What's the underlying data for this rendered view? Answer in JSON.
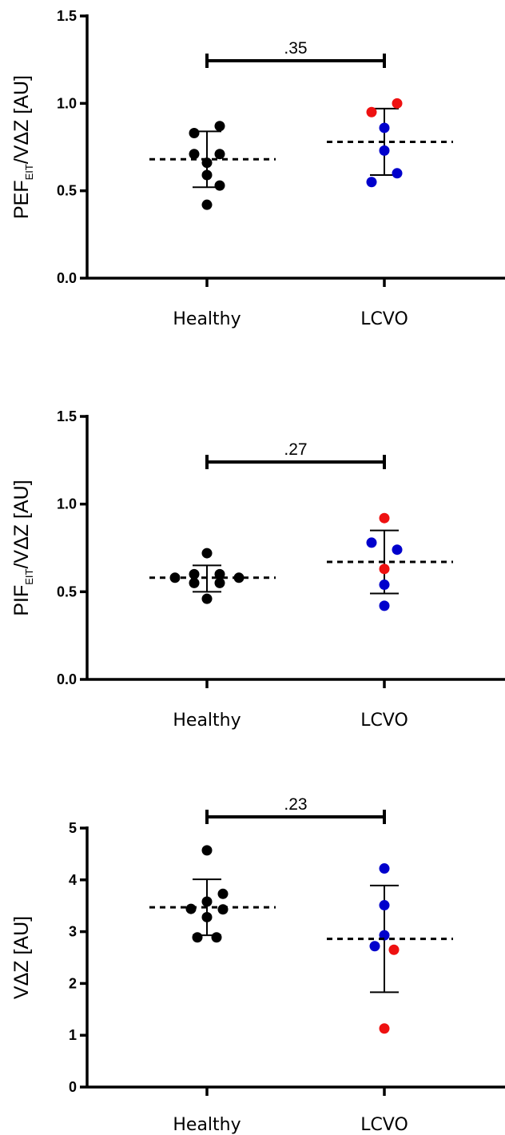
{
  "colors": {
    "healthy": "#000000",
    "lcvo_blue": "#0000cc",
    "lcvo_red": "#ee1111"
  },
  "chart_data": [
    {
      "type": "scatter",
      "categories": [
        "Healthy",
        "LCVO"
      ],
      "ylabel_main": "PEF",
      "ylabel_sub": "EIT",
      "ylabel_rest": "/VΔZ  [AU]",
      "ylim": [
        0,
        1.5
      ],
      "yticks": [
        "0.0",
        "0.5",
        "1.0",
        "1.5"
      ],
      "grid": false,
      "p_value": ".35",
      "groups": [
        {
          "name": "Healthy",
          "mean": 0.68,
          "sd_low": 0.52,
          "sd_high": 0.84,
          "points": [
            {
              "dx": -0.2,
              "y": 0.83,
              "c": "healthy"
            },
            {
              "dx": 0.2,
              "y": 0.87,
              "c": "healthy"
            },
            {
              "dx": -0.2,
              "y": 0.71,
              "c": "healthy"
            },
            {
              "dx": 0.2,
              "y": 0.71,
              "c": "healthy"
            },
            {
              "dx": 0.0,
              "y": 0.66,
              "c": "healthy"
            },
            {
              "dx": 0.0,
              "y": 0.59,
              "c": "healthy"
            },
            {
              "dx": 0.2,
              "y": 0.53,
              "c": "healthy"
            },
            {
              "dx": 0.0,
              "y": 0.42,
              "c": "healthy"
            }
          ]
        },
        {
          "name": "LCVO",
          "mean": 0.78,
          "sd_low": 0.59,
          "sd_high": 0.97,
          "points": [
            {
              "dx": 0.2,
              "y": 1.0,
              "c": "lcvo_red"
            },
            {
              "dx": -0.2,
              "y": 0.95,
              "c": "lcvo_red"
            },
            {
              "dx": 0.0,
              "y": 0.86,
              "c": "lcvo_blue"
            },
            {
              "dx": 0.0,
              "y": 0.73,
              "c": "lcvo_blue"
            },
            {
              "dx": 0.2,
              "y": 0.6,
              "c": "lcvo_blue"
            },
            {
              "dx": -0.2,
              "y": 0.55,
              "c": "lcvo_blue"
            }
          ]
        }
      ]
    },
    {
      "type": "scatter",
      "categories": [
        "Healthy",
        "LCVO"
      ],
      "ylabel_main": "PIF",
      "ylabel_sub": "EIT",
      "ylabel_rest": "/VΔZ  [AU]",
      "ylim": [
        0,
        1.5
      ],
      "yticks": [
        "0.0",
        "0.5",
        "1.0",
        "1.5"
      ],
      "grid": false,
      "p_value": ".27",
      "groups": [
        {
          "name": "Healthy",
          "mean": 0.58,
          "sd_low": 0.5,
          "sd_high": 0.65,
          "points": [
            {
              "dx": 0.0,
              "y": 0.72,
              "c": "healthy"
            },
            {
              "dx": -0.2,
              "y": 0.6,
              "c": "healthy"
            },
            {
              "dx": 0.2,
              "y": 0.6,
              "c": "healthy"
            },
            {
              "dx": -0.5,
              "y": 0.58,
              "c": "healthy"
            },
            {
              "dx": 0.5,
              "y": 0.58,
              "c": "healthy"
            },
            {
              "dx": -0.2,
              "y": 0.55,
              "c": "healthy"
            },
            {
              "dx": 0.2,
              "y": 0.55,
              "c": "healthy"
            },
            {
              "dx": 0.0,
              "y": 0.46,
              "c": "healthy"
            }
          ]
        },
        {
          "name": "LCVO",
          "mean": 0.67,
          "sd_low": 0.49,
          "sd_high": 0.85,
          "points": [
            {
              "dx": 0.0,
              "y": 0.92,
              "c": "lcvo_red"
            },
            {
              "dx": -0.2,
              "y": 0.78,
              "c": "lcvo_blue"
            },
            {
              "dx": 0.2,
              "y": 0.74,
              "c": "lcvo_blue"
            },
            {
              "dx": 0.0,
              "y": 0.63,
              "c": "lcvo_red"
            },
            {
              "dx": 0.0,
              "y": 0.54,
              "c": "lcvo_blue"
            },
            {
              "dx": 0.0,
              "y": 0.42,
              "c": "lcvo_blue"
            }
          ]
        }
      ]
    },
    {
      "type": "scatter",
      "categories": [
        "Healthy",
        "LCVO"
      ],
      "ylabel_main": "VΔZ  [AU]",
      "ylabel_sub": "",
      "ylabel_rest": "",
      "ylim": [
        0,
        5
      ],
      "yticks": [
        "0",
        "1",
        "2",
        "3",
        "4",
        "5"
      ],
      "grid": false,
      "p_value": ".23",
      "groups": [
        {
          "name": "Healthy",
          "mean": 3.47,
          "sd_low": 2.93,
          "sd_high": 4.01,
          "points": [
            {
              "dx": 0.0,
              "y": 4.57,
              "c": "healthy"
            },
            {
              "dx": 0.25,
              "y": 3.73,
              "c": "healthy"
            },
            {
              "dx": 0.0,
              "y": 3.58,
              "c": "healthy"
            },
            {
              "dx": -0.25,
              "y": 3.44,
              "c": "healthy"
            },
            {
              "dx": 0.25,
              "y": 3.43,
              "c": "healthy"
            },
            {
              "dx": 0.0,
              "y": 3.28,
              "c": "healthy"
            },
            {
              "dx": -0.15,
              "y": 2.89,
              "c": "healthy"
            },
            {
              "dx": 0.15,
              "y": 2.89,
              "c": "healthy"
            }
          ]
        },
        {
          "name": "LCVO",
          "mean": 2.86,
          "sd_low": 1.83,
          "sd_high": 3.89,
          "points": [
            {
              "dx": 0.0,
              "y": 4.22,
              "c": "lcvo_blue"
            },
            {
              "dx": 0.0,
              "y": 3.51,
              "c": "lcvo_blue"
            },
            {
              "dx": 0.0,
              "y": 2.93,
              "c": "lcvo_blue"
            },
            {
              "dx": -0.15,
              "y": 2.72,
              "c": "lcvo_blue"
            },
            {
              "dx": 0.15,
              "y": 2.65,
              "c": "lcvo_red"
            },
            {
              "dx": 0.0,
              "y": 1.13,
              "c": "lcvo_red"
            }
          ]
        }
      ]
    }
  ]
}
